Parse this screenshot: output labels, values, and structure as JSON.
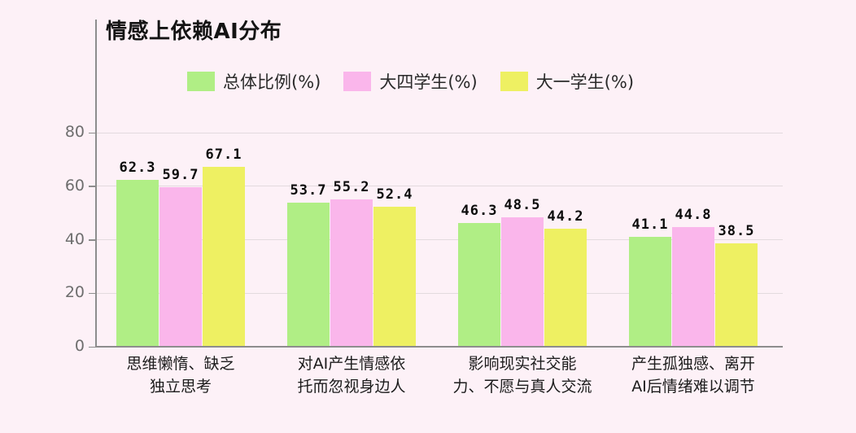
{
  "page": {
    "background": "#fdf1f7"
  },
  "chart_data": {
    "type": "bar",
    "title": "情感上依赖AI分布",
    "categories": [
      "思维懒惰、缺乏独立思考",
      "对AI产生情感依托而忽视身边人",
      "影响现实社交能力、不愿与真人交流",
      "产生孤独感、离开AI后情绪难以调节"
    ],
    "category_display_lines": [
      [
        "思维懒惰、缺乏",
        "独立思考"
      ],
      [
        "对AI产生情感依",
        "托而忽视身边人"
      ],
      [
        "影响现实社交能",
        "力、不愿与真人交流"
      ],
      [
        "产生孤独感、离开",
        "AI后情绪难以调节"
      ]
    ],
    "series": [
      {
        "name": "总体比例(%)",
        "color": "#b0ee85",
        "values": [
          62.3,
          53.7,
          46.3,
          41.1
        ]
      },
      {
        "name": "大四学生(%)",
        "color": "#fab6eb",
        "values": [
          59.7,
          55.2,
          48.5,
          44.8
        ]
      },
      {
        "name": "大一学生(%)",
        "color": "#eef062",
        "values": [
          67.1,
          52.4,
          44.2,
          38.5
        ]
      }
    ],
    "xlabel": "",
    "ylabel": "",
    "y_ticks": [
      0,
      20,
      40,
      60,
      80
    ],
    "ylim": [
      0,
      88
    ],
    "grid": true,
    "legend_position": "top",
    "value_labels_shown": true
  }
}
